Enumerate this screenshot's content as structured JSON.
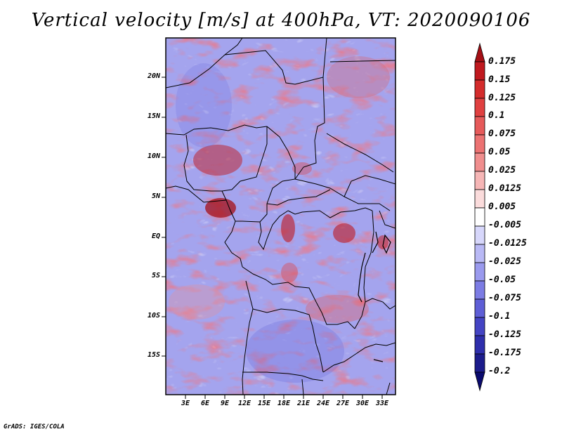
{
  "title": "Vertical velocity [m/s] at 400hPa, VT: 2020090106",
  "credit": "GrADS: IGES/COLA",
  "map": {
    "lat_labels": [
      "20N",
      "15N",
      "10N",
      "5N",
      "EQ",
      "5S",
      "10S",
      "15S"
    ],
    "lon_labels": [
      "3E",
      "6E",
      "9E",
      "12E",
      "15E",
      "18E",
      "21E",
      "24E",
      "27E",
      "30E",
      "33E"
    ]
  },
  "colorbar": {
    "labels": [
      "0.175",
      "0.15",
      "0.125",
      "0.1",
      "0.075",
      "0.05",
      "0.025",
      "0.0125",
      "0.005",
      "-0.005",
      "-0.0125",
      "-0.025",
      "-0.05",
      "-0.075",
      "-0.1",
      "-0.125",
      "-0.175",
      "-0.2"
    ],
    "colors": [
      "#a50f15",
      "#c0191f",
      "#d42c2c",
      "#e04040",
      "#e65a5a",
      "#ec7272",
      "#f08e8e",
      "#f6b6b6",
      "#fbdcdc",
      "#ffffff",
      "#d7d7fb",
      "#b9b9f5",
      "#9a9aee",
      "#7c7ce4",
      "#5e5ed6",
      "#4444c4",
      "#2e2eac",
      "#1c1c8c",
      "#0a0a6e"
    ]
  }
}
